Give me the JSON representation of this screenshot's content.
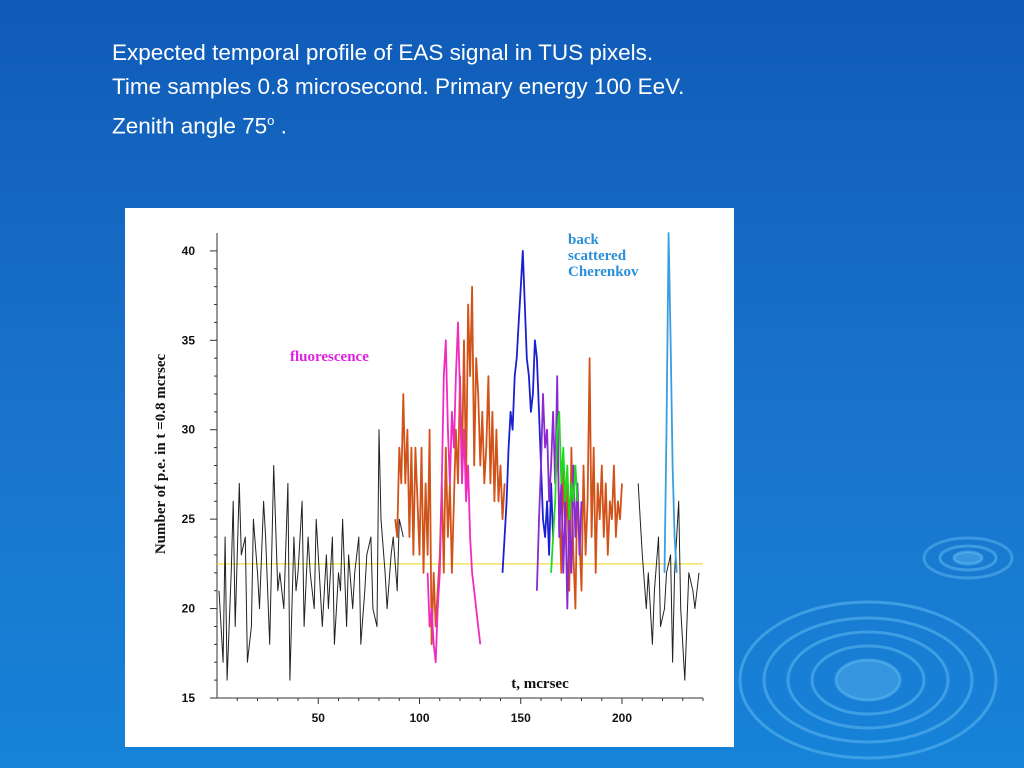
{
  "slide": {
    "title_line1": "Expected temporal profile of EAS signal in TUS pixels.",
    "title_line2": "Time samples 0.8 microsecond. Primary energy 100 EeV.",
    "title_line3_pre": "Zenith angle 75",
    "title_line3_sup": "o",
    "title_line3_post": " ."
  },
  "chart_data": {
    "type": "line",
    "xlabel": "t, mcrsec",
    "ylabel": "Number of p.e.  in t =0.8 mcrsec",
    "xlim": [
      0,
      240
    ],
    "ylim": [
      15,
      41
    ],
    "xticks": [
      50,
      100,
      150,
      200
    ],
    "yticks": [
      15,
      20,
      25,
      30,
      35,
      40
    ],
    "grid": false,
    "reference_line": {
      "y": 22.5,
      "color": "#f0e040"
    },
    "annotations": [
      {
        "text": "fluorescence",
        "color": "#e020e0"
      },
      {
        "text": "back",
        "color": "#2a8fd8"
      },
      {
        "text": "scattered",
        "color": "#2a8fd8"
      },
      {
        "text": "Cherenkov",
        "color": "#2a8fd8"
      }
    ],
    "series": [
      {
        "color": "#222222",
        "x": [
          1,
          3,
          4,
          5,
          7,
          8,
          9,
          11,
          12,
          14,
          15,
          17,
          18,
          20,
          21,
          23,
          24,
          26,
          27,
          28,
          30,
          31,
          33,
          35,
          36,
          38,
          39,
          40,
          42,
          43,
          45,
          46,
          48,
          49,
          51,
          52,
          54,
          55,
          57,
          58,
          60,
          61,
          62,
          64,
          65,
          67,
          68,
          70,
          71,
          73,
          74,
          76,
          77,
          79,
          80,
          81,
          83,
          84,
          86,
          87,
          89,
          90,
          92
        ],
        "y": [
          21,
          17,
          24,
          16,
          22,
          26,
          19,
          27,
          23,
          24,
          17,
          19,
          25,
          22,
          20,
          26,
          24,
          18,
          23,
          28,
          21,
          22,
          20,
          27,
          16,
          24,
          21,
          22,
          26,
          19,
          24,
          22,
          20,
          25,
          21,
          19,
          23,
          20,
          24,
          18,
          22,
          21,
          25,
          19,
          23,
          20,
          22,
          24,
          18,
          21,
          23,
          24,
          20,
          19,
          30,
          25,
          22,
          20,
          23,
          24,
          21,
          25,
          24
        ]
      },
      {
        "color": "#222222",
        "x": [
          208,
          209,
          210,
          212,
          213,
          215,
          216,
          218,
          219,
          221,
          222,
          224,
          225,
          226,
          228,
          229,
          231,
          232,
          233,
          235,
          236,
          238
        ],
        "y": [
          27,
          25,
          23,
          20,
          22,
          18,
          21,
          24,
          19,
          20,
          22,
          23,
          17,
          22,
          26,
          20,
          16,
          19,
          22,
          21,
          20,
          22
        ]
      },
      {
        "color": "#d2531a",
        "x": [
          88,
          89,
          90,
          91,
          92,
          93,
          94,
          95,
          96,
          97,
          98,
          99,
          100,
          101,
          102,
          103,
          104,
          105,
          106,
          107,
          108,
          109,
          110,
          111,
          112,
          113,
          114,
          115,
          116,
          117,
          118,
          119,
          120,
          121,
          122,
          123,
          124,
          125,
          126,
          127,
          128,
          129,
          130,
          131,
          132,
          133,
          134,
          135,
          136,
          137,
          138,
          139,
          140,
          141,
          142
        ],
        "y": [
          25,
          24,
          29,
          27,
          32,
          27,
          30,
          24,
          29,
          23,
          29,
          26,
          23,
          29,
          22,
          27,
          23,
          30,
          18,
          22,
          19,
          21,
          23,
          27,
          22,
          29,
          24,
          27,
          22,
          26,
          30,
          27,
          33,
          28,
          35,
          27,
          37,
          33,
          38,
          28,
          34,
          32,
          28,
          31,
          27,
          29,
          33,
          27,
          31,
          26,
          30,
          26,
          28,
          25,
          27
        ]
      },
      {
        "color": "#d2531a",
        "x": [
          168,
          169,
          170,
          171,
          172,
          173,
          174,
          175,
          176,
          177,
          178,
          179,
          180,
          181,
          182,
          183,
          184,
          185,
          186,
          187,
          188,
          189,
          190,
          191,
          192,
          193,
          194,
          195,
          196,
          197,
          198,
          199,
          200
        ],
        "y": [
          29,
          26,
          22,
          28,
          24,
          27,
          21,
          29,
          23,
          20,
          27,
          24,
          21,
          28,
          23,
          26,
          34,
          24,
          29,
          22,
          27,
          25,
          28,
          24,
          27,
          23,
          26,
          25,
          28,
          24,
          26,
          25,
          27
        ]
      },
      {
        "color": "#f02cc0",
        "x": [
          104,
          105,
          106,
          107,
          108,
          109,
          110,
          111,
          112,
          113,
          114,
          115,
          116,
          117,
          118,
          119,
          120,
          121,
          122,
          123,
          124,
          125,
          126,
          127,
          128,
          129,
          130
        ],
        "y": [
          22,
          19,
          20,
          18,
          17,
          20,
          22,
          27,
          33,
          35,
          30,
          27,
          31,
          29,
          33,
          36,
          32,
          27,
          30,
          26,
          28,
          24,
          22,
          21,
          20,
          19,
          18
        ]
      },
      {
        "color": "#1a20d0",
        "x": [
          141,
          142,
          143,
          144,
          145,
          146,
          147,
          148,
          149,
          150,
          151,
          152,
          153,
          154,
          155,
          156,
          157,
          158,
          159,
          160,
          161,
          162,
          163,
          164,
          165,
          166
        ],
        "y": [
          22,
          24,
          26,
          29,
          31,
          30,
          33,
          34,
          36,
          38,
          40,
          37,
          34,
          33,
          31,
          32,
          35,
          34,
          31,
          28,
          25,
          24,
          26,
          23,
          27,
          24
        ]
      },
      {
        "color": "#8a2ad0",
        "x": [
          158,
          159,
          160,
          161,
          162,
          163,
          164,
          165,
          166,
          167,
          168,
          169,
          170,
          171,
          172,
          173,
          174,
          175,
          176,
          177,
          178,
          179,
          180
        ],
        "y": [
          21,
          25,
          28,
          32,
          29,
          30,
          26,
          28,
          31,
          27,
          33,
          24,
          27,
          22,
          26,
          20,
          25,
          22,
          28,
          24,
          27,
          23,
          26
        ]
      },
      {
        "color": "#20d820",
        "x": [
          165,
          166,
          167,
          168,
          169,
          170,
          171,
          172,
          173,
          174,
          175,
          176,
          177,
          178
        ],
        "y": [
          22,
          24,
          26,
          30,
          31,
          27,
          29,
          26,
          28,
          25,
          27,
          26,
          28,
          26
        ]
      },
      {
        "color": "#3a9ee0",
        "x": [
          221,
          222,
          223,
          224,
          225,
          226,
          227
        ],
        "y": [
          22,
          30,
          41,
          35,
          28,
          24,
          22
        ]
      }
    ]
  }
}
